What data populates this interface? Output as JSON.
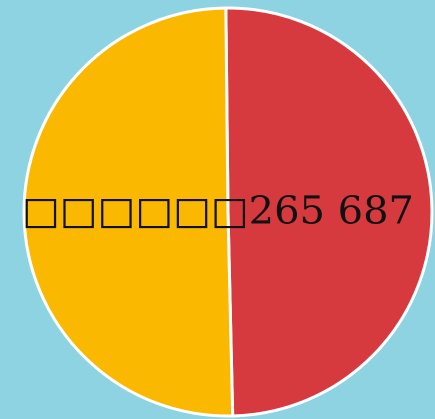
{
  "chart_data": {
    "type": "pie",
    "values": [
      49.8,
      50.2
    ],
    "colors": [
      "#d63a3f",
      "#fbb800"
    ],
    "label": "□□□□□□265 687"
  }
}
